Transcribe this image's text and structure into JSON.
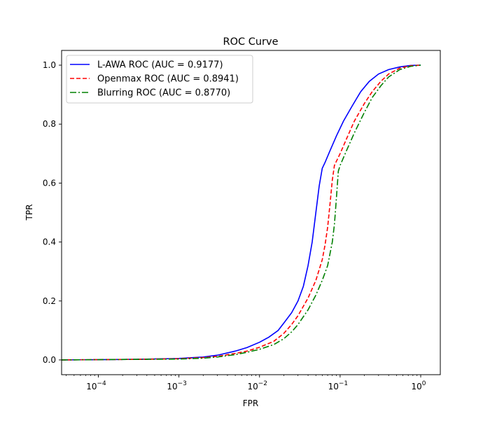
{
  "chart_data": {
    "type": "line",
    "title": "ROC Curve",
    "xlabel": "FPR",
    "ylabel": "TPR",
    "xscale": "log",
    "xlim": [
      3.5e-05,
      1.75
    ],
    "ylim": [
      -0.05,
      1.05
    ],
    "grid": false,
    "legend_position": "top-left",
    "x_ticks": [
      {
        "value": 0.0001,
        "base": "10",
        "exp": "−4"
      },
      {
        "value": 0.001,
        "base": "10",
        "exp": "−3"
      },
      {
        "value": 0.01,
        "base": "10",
        "exp": "−2"
      },
      {
        "value": 0.1,
        "base": "10",
        "exp": "−1"
      },
      {
        "value": 1,
        "base": "10",
        "exp": "0"
      }
    ],
    "y_ticks": [
      "0.0",
      "0.2",
      "0.4",
      "0.6",
      "0.8",
      "1.0"
    ],
    "series": [
      {
        "name": "L-AWA ROC (AUC = 0.9177)",
        "color": "#0000ff",
        "dash": "solid",
        "points": [
          [
            3.5e-05,
            0.0
          ],
          [
            0.0001,
            0.001
          ],
          [
            0.0003,
            0.002
          ],
          [
            0.001,
            0.005
          ],
          [
            0.002,
            0.01
          ],
          [
            0.003,
            0.016
          ],
          [
            0.005,
            0.03
          ],
          [
            0.007,
            0.042
          ],
          [
            0.01,
            0.06
          ],
          [
            0.013,
            0.077
          ],
          [
            0.017,
            0.1
          ],
          [
            0.02,
            0.125
          ],
          [
            0.025,
            0.16
          ],
          [
            0.03,
            0.2
          ],
          [
            0.035,
            0.25
          ],
          [
            0.04,
            0.32
          ],
          [
            0.045,
            0.4
          ],
          [
            0.05,
            0.5
          ],
          [
            0.055,
            0.59
          ],
          [
            0.06,
            0.65
          ],
          [
            0.065,
            0.67
          ],
          [
            0.075,
            0.71
          ],
          [
            0.09,
            0.76
          ],
          [
            0.11,
            0.81
          ],
          [
            0.14,
            0.86
          ],
          [
            0.18,
            0.91
          ],
          [
            0.23,
            0.945
          ],
          [
            0.3,
            0.97
          ],
          [
            0.4,
            0.985
          ],
          [
            0.55,
            0.994
          ],
          [
            0.75,
            0.999
          ],
          [
            1.0,
            1.0
          ]
        ]
      },
      {
        "name": "Openmax ROC (AUC = 0.8941)",
        "color": "#ff0000",
        "dash": "dashed",
        "points": [
          [
            3.5e-05,
            0.0
          ],
          [
            0.0001,
            0.001
          ],
          [
            0.0003,
            0.002
          ],
          [
            0.001,
            0.004
          ],
          [
            0.002,
            0.008
          ],
          [
            0.003,
            0.012
          ],
          [
            0.005,
            0.022
          ],
          [
            0.007,
            0.03
          ],
          [
            0.01,
            0.043
          ],
          [
            0.015,
            0.063
          ],
          [
            0.02,
            0.09
          ],
          [
            0.025,
            0.12
          ],
          [
            0.03,
            0.15
          ],
          [
            0.04,
            0.21
          ],
          [
            0.05,
            0.27
          ],
          [
            0.06,
            0.34
          ],
          [
            0.065,
            0.39
          ],
          [
            0.07,
            0.45
          ],
          [
            0.075,
            0.53
          ],
          [
            0.08,
            0.61
          ],
          [
            0.085,
            0.66
          ],
          [
            0.1,
            0.7
          ],
          [
            0.12,
            0.75
          ],
          [
            0.15,
            0.81
          ],
          [
            0.2,
            0.87
          ],
          [
            0.25,
            0.91
          ],
          [
            0.32,
            0.945
          ],
          [
            0.4,
            0.97
          ],
          [
            0.55,
            0.99
          ],
          [
            0.75,
            0.998
          ],
          [
            1.0,
            1.0
          ]
        ]
      },
      {
        "name": "Blurring ROC (AUC = 0.8770)",
        "color": "#008000",
        "dash": "dashdot",
        "points": [
          [
            3.5e-05,
            0.0
          ],
          [
            0.0001,
            0.001
          ],
          [
            0.0003,
            0.002
          ],
          [
            0.001,
            0.003
          ],
          [
            0.002,
            0.006
          ],
          [
            0.003,
            0.01
          ],
          [
            0.005,
            0.018
          ],
          [
            0.007,
            0.026
          ],
          [
            0.01,
            0.036
          ],
          [
            0.015,
            0.052
          ],
          [
            0.02,
            0.072
          ],
          [
            0.025,
            0.095
          ],
          [
            0.03,
            0.12
          ],
          [
            0.04,
            0.17
          ],
          [
            0.05,
            0.22
          ],
          [
            0.06,
            0.27
          ],
          [
            0.07,
            0.32
          ],
          [
            0.08,
            0.4
          ],
          [
            0.085,
            0.46
          ],
          [
            0.09,
            0.55
          ],
          [
            0.095,
            0.64
          ],
          [
            0.1,
            0.66
          ],
          [
            0.12,
            0.71
          ],
          [
            0.15,
            0.77
          ],
          [
            0.2,
            0.84
          ],
          [
            0.25,
            0.89
          ],
          [
            0.32,
            0.93
          ],
          [
            0.4,
            0.96
          ],
          [
            0.55,
            0.985
          ],
          [
            0.75,
            0.996
          ],
          [
            1.0,
            1.0
          ]
        ]
      }
    ]
  }
}
